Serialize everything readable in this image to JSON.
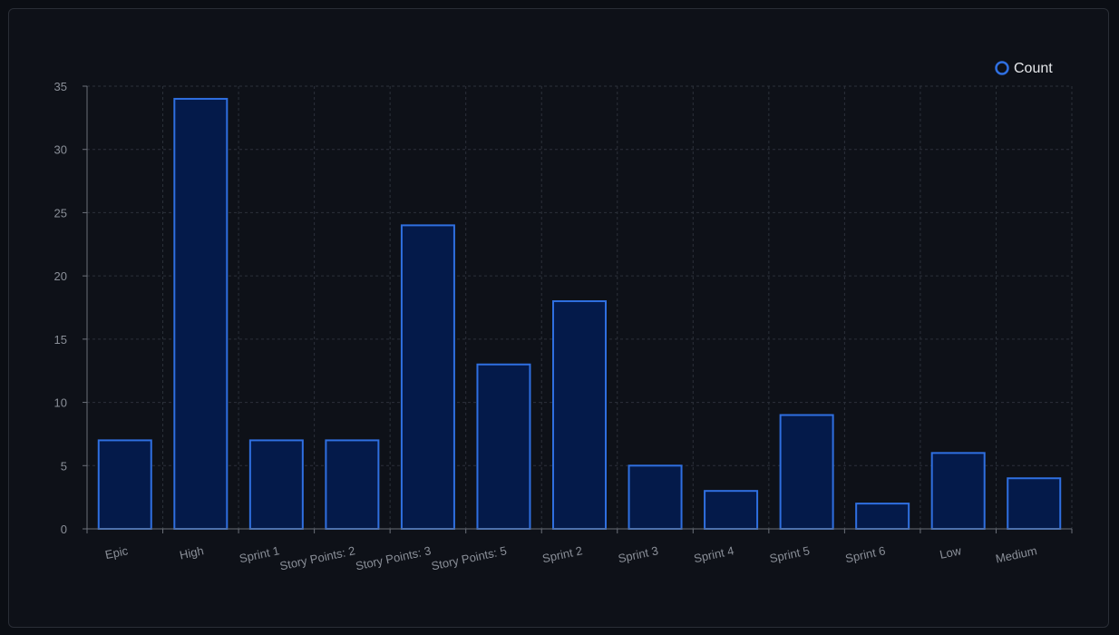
{
  "colors": {
    "background": "#0e1118",
    "bar_fill": "#041a4a",
    "bar_stroke": "#2f6fe0",
    "grid": "#2c313a",
    "axis": "#6b7079",
    "tick_text": "#8a8f98",
    "legend_text": "#e6e8eb"
  },
  "chart_data": {
    "type": "bar",
    "categories": [
      "Epic",
      "High",
      "Sprint 1",
      "Story Points: 2",
      "Story Points: 3",
      "Story Points: 5",
      "Sprint 2",
      "Sprint 3",
      "Sprint 4",
      "Sprint 5",
      "Sprint 6",
      "Low",
      "Medium"
    ],
    "series": [
      {
        "name": "Count",
        "values": [
          7,
          34,
          7,
          7,
          24,
          13,
          18,
          5,
          3,
          9,
          2,
          6,
          4
        ]
      }
    ],
    "ylim": [
      0,
      35
    ],
    "yticks": [
      0,
      5,
      10,
      15,
      20,
      25,
      30,
      35
    ],
    "grid": true,
    "legend": "top-right",
    "legend_icon": "circle-outline-icon"
  }
}
